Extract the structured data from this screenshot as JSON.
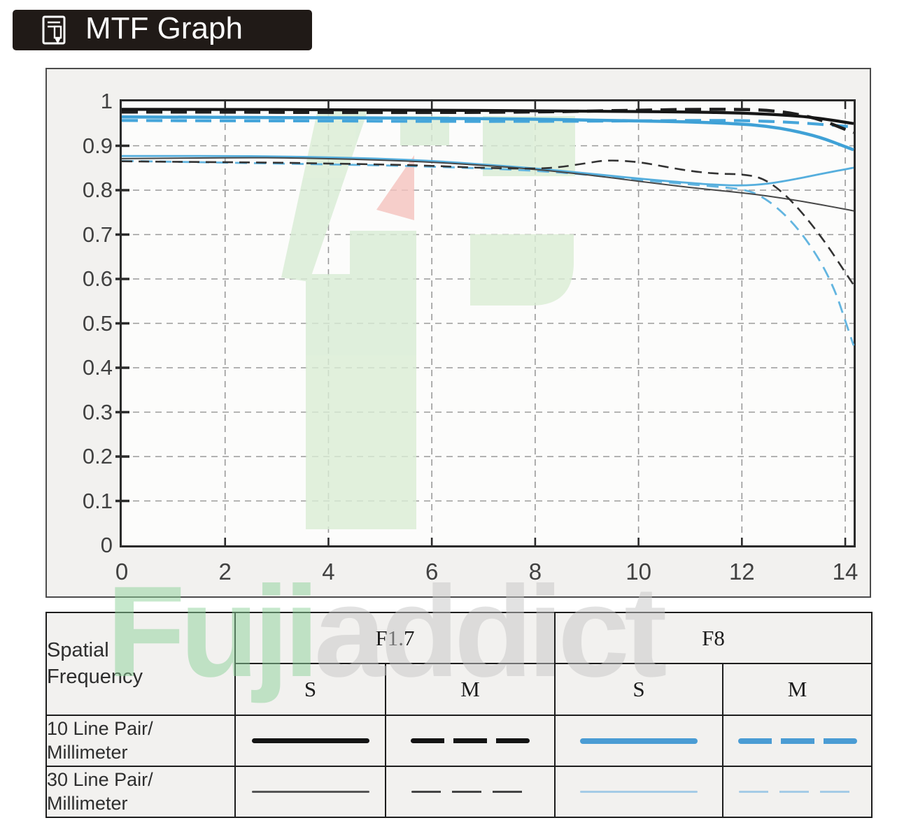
{
  "title": {
    "label": "MTF Graph",
    "icon": "document-pencil-icon"
  },
  "watermark": {
    "text_green": "Fuji",
    "text_gray": "addict"
  },
  "colors": {
    "accent_blue_thick": "#3fa1d6",
    "accent_blue_thin": "#5bb0de",
    "legend_blue_10lp": "#4a9cd4",
    "legend_blue_30lp": "#a5cbe6",
    "black_thick": "#161616",
    "gray_thin": "#474747",
    "grid": "#9a9a9a",
    "panel_bg": "#f2f1ef",
    "title_bg": "#201a17",
    "watermark_green": "#d9ecd5",
    "watermark_pink": "#f5c3bf"
  },
  "chart_data": {
    "type": "line",
    "title": "MTF Graph",
    "xlabel": "",
    "ylabel": "",
    "xlim": [
      0,
      14.2
    ],
    "ylim": [
      0,
      1
    ],
    "grid": "dashed",
    "legend_position": "bottom-table",
    "x_ticks": [
      0,
      2,
      4,
      6,
      8,
      10,
      12,
      14
    ],
    "y_ticks": [
      {
        "v": 0,
        "label": "0"
      },
      {
        "v": 0.1,
        "label": "0.1"
      },
      {
        "v": 0.2,
        "label": "0.2"
      },
      {
        "v": 0.3,
        "label": "0.3"
      },
      {
        "v": 0.4,
        "label": "0.4"
      },
      {
        "v": 0.5,
        "label": "0.5"
      },
      {
        "v": 0.6,
        "label": "0.6"
      },
      {
        "v": 0.7,
        "label": "0.7"
      },
      {
        "v": 0.8,
        "label": "0.8"
      },
      {
        "v": 0.9,
        "label": "0.9"
      },
      {
        "v": 1,
        "label": "1"
      }
    ],
    "series": [
      {
        "name": "F8 M 30lp/mm",
        "aperture": "F8",
        "orientation": "M",
        "frequency": "30 Line Pair/Millimeter",
        "color": "#63b5e0",
        "width": 2.8,
        "dash": "17 10",
        "points": [
          [
            0,
            0.866
          ],
          [
            1,
            0.864
          ],
          [
            2,
            0.862
          ],
          [
            3,
            0.86
          ],
          [
            4,
            0.858
          ],
          [
            5,
            0.856
          ],
          [
            6,
            0.853
          ],
          [
            7,
            0.849
          ],
          [
            8,
            0.844
          ],
          [
            9,
            0.835
          ],
          [
            10,
            0.823
          ],
          [
            11,
            0.813
          ],
          [
            11.7,
            0.806
          ],
          [
            12,
            0.802
          ],
          [
            12.3,
            0.792
          ],
          [
            12.7,
            0.76
          ],
          [
            13.1,
            0.712
          ],
          [
            13.5,
            0.645
          ],
          [
            13.8,
            0.575
          ],
          [
            14,
            0.506
          ]
        ]
      },
      {
        "name": "F8 S 30lp/mm",
        "aperture": "F8",
        "orientation": "S",
        "frequency": "30 Line Pair/Millimeter",
        "color": "#55aedd",
        "width": 2.8,
        "dash": null,
        "points": [
          [
            0,
            0.877
          ],
          [
            1,
            0.877
          ],
          [
            2,
            0.877
          ],
          [
            3,
            0.876
          ],
          [
            4,
            0.874
          ],
          [
            5,
            0.871
          ],
          [
            6,
            0.866
          ],
          [
            7,
            0.858
          ],
          [
            8,
            0.849
          ],
          [
            9,
            0.838
          ],
          [
            10,
            0.826
          ],
          [
            11,
            0.816
          ],
          [
            11.5,
            0.812
          ],
          [
            12,
            0.81
          ],
          [
            12.5,
            0.814
          ],
          [
            13,
            0.824
          ],
          [
            13.5,
            0.836
          ],
          [
            14,
            0.847
          ]
        ]
      },
      {
        "name": "F1.7 S 30lp/mm",
        "aperture": "F1.7",
        "orientation": "S",
        "frequency": "30 Line Pair/Millimeter",
        "color": "#474747",
        "width": 2,
        "dash": null,
        "points": [
          [
            0,
            0.871
          ],
          [
            1,
            0.872
          ],
          [
            2,
            0.873
          ],
          [
            3,
            0.873
          ],
          [
            4,
            0.871
          ],
          [
            5,
            0.868
          ],
          [
            6,
            0.863
          ],
          [
            7,
            0.856
          ],
          [
            8,
            0.847
          ],
          [
            9,
            0.835
          ],
          [
            10,
            0.82
          ],
          [
            11,
            0.806
          ],
          [
            11.5,
            0.8
          ],
          [
            12,
            0.794
          ],
          [
            12.5,
            0.787
          ],
          [
            13,
            0.778
          ],
          [
            13.5,
            0.768
          ],
          [
            14,
            0.757
          ]
        ]
      },
      {
        "name": "F1.7 M 30lp/mm",
        "aperture": "F1.7",
        "orientation": "M",
        "frequency": "30 Line Pair/Millimeter",
        "color": "#333333",
        "width": 2.6,
        "dash": "15 9",
        "points": [
          [
            0,
            0.865
          ],
          [
            1,
            0.864
          ],
          [
            2,
            0.863
          ],
          [
            3,
            0.862
          ],
          [
            4,
            0.86
          ],
          [
            5,
            0.858
          ],
          [
            6,
            0.855
          ],
          [
            7,
            0.85
          ],
          [
            8,
            0.848
          ],
          [
            8.5,
            0.852
          ],
          [
            9,
            0.861
          ],
          [
            9.4,
            0.868
          ],
          [
            10,
            0.864
          ],
          [
            10.5,
            0.853
          ],
          [
            11,
            0.843
          ],
          [
            11.5,
            0.837
          ],
          [
            12,
            0.836
          ],
          [
            12.4,
            0.828
          ],
          [
            12.8,
            0.795
          ],
          [
            13.2,
            0.745
          ],
          [
            13.6,
            0.685
          ],
          [
            14,
            0.615
          ]
        ]
      },
      {
        "name": "F8 M 10lp/mm",
        "aperture": "F8",
        "orientation": "M",
        "frequency": "10 Line Pair/Millimeter",
        "color": "#45a5da",
        "width": 4.2,
        "dash": "23 12",
        "points": [
          [
            0,
            0.957
          ],
          [
            2,
            0.956
          ],
          [
            4,
            0.956
          ],
          [
            6,
            0.955
          ],
          [
            8,
            0.955
          ],
          [
            10,
            0.956
          ],
          [
            11,
            0.957
          ],
          [
            12,
            0.957
          ],
          [
            13,
            0.953
          ],
          [
            14,
            0.944
          ]
        ]
      },
      {
        "name": "F8 S 10lp/mm",
        "aperture": "F8",
        "orientation": "S",
        "frequency": "10 Line Pair/Millimeter",
        "color": "#3fa1d6",
        "width": 4.5,
        "dash": null,
        "points": [
          [
            0,
            0.965
          ],
          [
            2,
            0.964
          ],
          [
            4,
            0.963
          ],
          [
            6,
            0.962
          ],
          [
            8,
            0.96
          ],
          [
            10,
            0.956
          ],
          [
            11,
            0.954
          ],
          [
            12,
            0.949
          ],
          [
            12.5,
            0.944
          ],
          [
            13,
            0.934
          ],
          [
            13.5,
            0.92
          ],
          [
            14,
            0.898
          ]
        ]
      },
      {
        "name": "F1.7 M 10lp/mm",
        "aperture": "F1.7",
        "orientation": "M",
        "frequency": "10 Line Pair/Millimeter",
        "color": "#1f1f1f",
        "width": 4.5,
        "dash": "23 12",
        "points": [
          [
            0,
            0.976
          ],
          [
            2,
            0.976
          ],
          [
            4,
            0.975
          ],
          [
            6,
            0.975
          ],
          [
            8,
            0.976
          ],
          [
            9,
            0.978
          ],
          [
            10,
            0.98
          ],
          [
            11,
            0.982
          ],
          [
            12,
            0.982
          ],
          [
            12.5,
            0.98
          ],
          [
            13,
            0.973
          ],
          [
            13.5,
            0.96
          ],
          [
            14,
            0.937
          ]
        ]
      },
      {
        "name": "F1.7 S 10lp/mm",
        "aperture": "F1.7",
        "orientation": "S",
        "frequency": "10 Line Pair/Millimeter",
        "color": "#161616",
        "width": 4.2,
        "dash": null,
        "points": [
          [
            0,
            0.982
          ],
          [
            2,
            0.982
          ],
          [
            4,
            0.981
          ],
          [
            6,
            0.98
          ],
          [
            8,
            0.979
          ],
          [
            10,
            0.977
          ],
          [
            11,
            0.976
          ],
          [
            12,
            0.974
          ],
          [
            13,
            0.968
          ],
          [
            13.5,
            0.962
          ],
          [
            14,
            0.953
          ]
        ]
      }
    ]
  },
  "legend_table": {
    "spatial_label_1": "Spatial",
    "spatial_label_2": "Frequency",
    "groups": [
      {
        "label": "F1.7",
        "cols": [
          "S",
          "M"
        ]
      },
      {
        "label": "F8",
        "cols": [
          "S",
          "M"
        ]
      }
    ],
    "col_s_f17": "S",
    "col_m_f17": "M",
    "col_s_f8": "S",
    "col_m_f8": "M",
    "group_f17": "F1.7",
    "group_f8": "F8",
    "rows": [
      {
        "label1": "10 Line Pair/",
        "label2": "Millimeter",
        "samples": [
          {
            "style": "solid",
            "color": "#141414",
            "thickness": 7,
            "dash": 0,
            "gap": 0,
            "length": 168
          },
          {
            "style": "dashed",
            "color": "#141414",
            "thickness": 7,
            "dash": 48,
            "gap": 13,
            "length": 170
          },
          {
            "style": "solid",
            "color": "#4a9cd4",
            "thickness": 8,
            "dash": 0,
            "gap": 0,
            "length": 168
          },
          {
            "style": "dashed",
            "color": "#4a9cd4",
            "thickness": 8,
            "dash": 48,
            "gap": 13,
            "length": 170
          }
        ]
      },
      {
        "label1": "30 Line Pair/",
        "label2": "Millimeter",
        "samples": [
          {
            "style": "solid",
            "color": "#555555",
            "thickness": 2.5,
            "dash": 0,
            "gap": 0,
            "length": 168
          },
          {
            "style": "dashed",
            "color": "#444444",
            "thickness": 2.5,
            "dash": 42,
            "gap": 16,
            "length": 168
          },
          {
            "style": "solid",
            "color": "#a5cbe6",
            "thickness": 3,
            "dash": 0,
            "gap": 0,
            "length": 168
          },
          {
            "style": "dashed",
            "color": "#a5cbe6",
            "thickness": 3,
            "dash": 42,
            "gap": 16,
            "length": 168
          }
        ]
      }
    ]
  }
}
